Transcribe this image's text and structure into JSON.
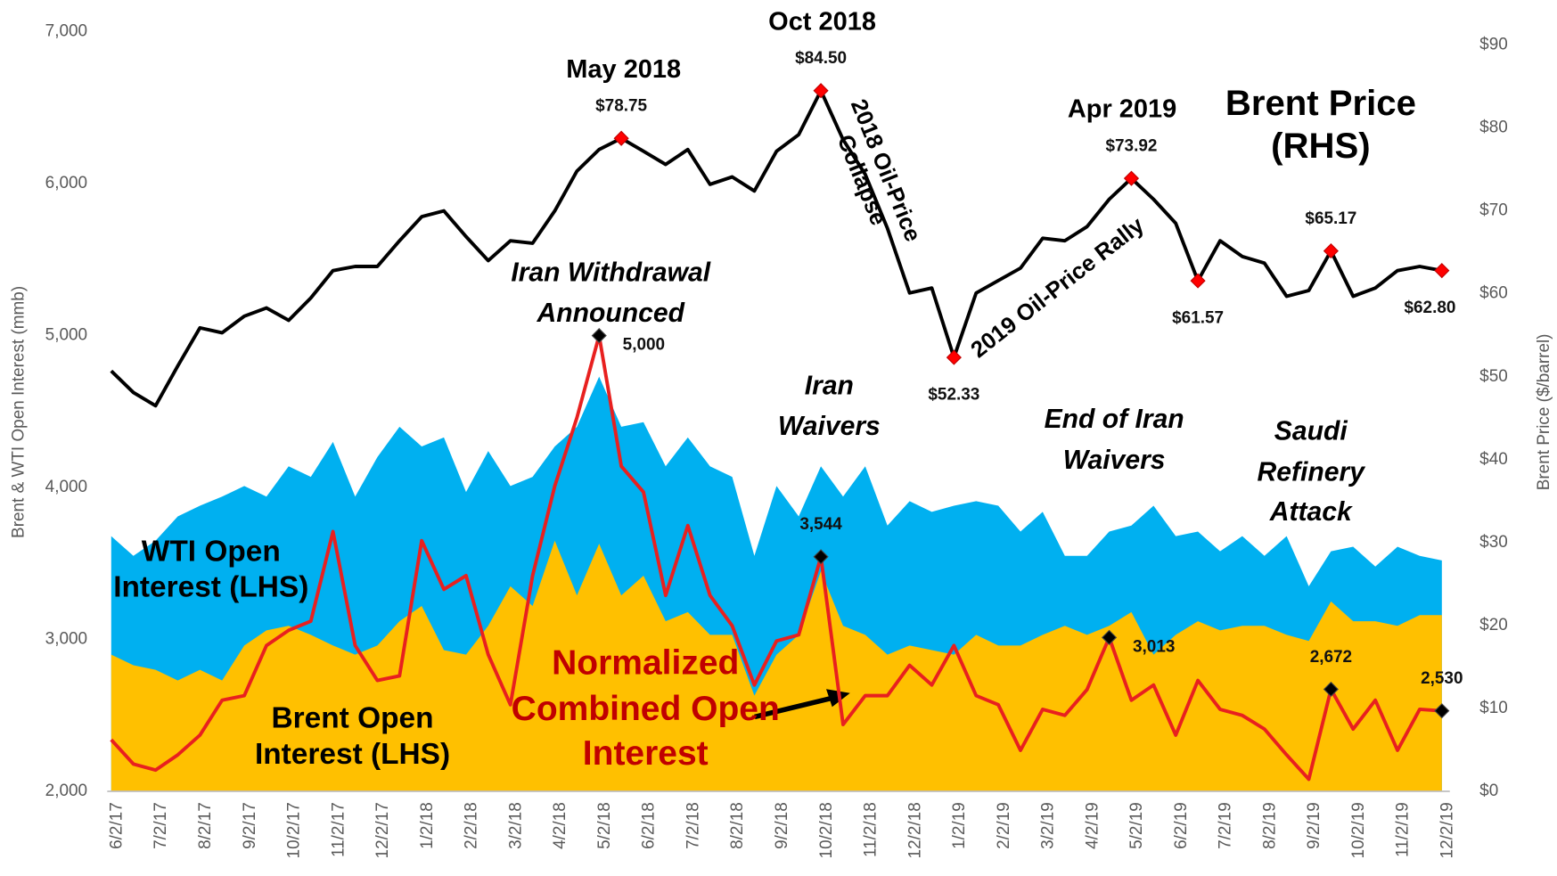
{
  "chart_data": {
    "type": "line",
    "y_axis_label": "Brent & WTI Open Interest (mmb)",
    "y2_axis_label": "Brent  Price ($/barrel)",
    "categories": [
      "6/2/17",
      null,
      "7/2/17",
      null,
      "8/2/17",
      null,
      "9/2/17",
      null,
      "10/2/17",
      null,
      "11/2/17",
      null,
      "12/2/17",
      null,
      "1/2/18",
      null,
      "2/2/18",
      null,
      "3/2/18",
      null,
      "4/2/18",
      null,
      "5/2/18",
      null,
      "6/2/18",
      null,
      "7/2/18",
      null,
      "8/2/18",
      null,
      "9/2/18",
      null,
      "10/2/18",
      null,
      "11/2/18",
      null,
      "12/2/18",
      null,
      "1/2/19",
      null,
      "2/2/19",
      null,
      "3/2/19",
      null,
      "4/2/19",
      null,
      "5/2/19",
      null,
      "6/2/19",
      null,
      "7/2/19",
      null,
      "8/2/19",
      null,
      "9/2/19",
      null,
      "10/2/19",
      null,
      "11/2/19",
      null,
      "12/2/19"
    ],
    "ylim": [
      2000,
      7000
    ],
    "yticks": [
      {
        "value": 2000,
        "label": "2,000"
      },
      {
        "value": 3000,
        "label": "3,000"
      },
      {
        "value": 4000,
        "label": "4,000"
      },
      {
        "value": 5000,
        "label": "5,000"
      },
      {
        "value": 6000,
        "label": "6,000"
      },
      {
        "value": 7000,
        "label": "7,000"
      }
    ],
    "y2lim": [
      0,
      91.6
    ],
    "y2ticks": [
      {
        "value": 0,
        "label": "$0"
      },
      {
        "value": 10,
        "label": "$10"
      },
      {
        "value": 20,
        "label": "$20"
      },
      {
        "value": 30,
        "label": "$30"
      },
      {
        "value": 40,
        "label": "$40"
      },
      {
        "value": 50,
        "label": "$50"
      },
      {
        "value": 60,
        "label": "$60"
      },
      {
        "value": 70,
        "label": "$70"
      },
      {
        "value": 80,
        "label": "$80"
      },
      {
        "value": 90,
        "label": "$90"
      }
    ],
    "series": [
      {
        "name": "WTI Open Interest (LHS)",
        "type": "area",
        "color": "#00b0f0",
        "values": [
          3680,
          3550,
          3650,
          3810,
          3880,
          3940,
          4010,
          3940,
          4140,
          4070,
          4300,
          3940,
          4200,
          4400,
          4270,
          4330,
          3970,
          4240,
          4010,
          4070,
          4270,
          4400,
          4730,
          4400,
          4430,
          4140,
          4330,
          4140,
          4070,
          3550,
          4010,
          3810,
          4140,
          3940,
          4140,
          3750,
          3910,
          3840,
          3880,
          3910,
          3880,
          3710,
          3840,
          3550,
          3550,
          3710,
          3750,
          3880,
          3680,
          3710,
          3580,
          3680,
          3550,
          3680,
          3350,
          3580,
          3610,
          3480,
          3610,
          3550,
          3520
        ]
      },
      {
        "name": "Brent Open Interest (LHS)",
        "type": "area",
        "color": "#ffc000",
        "values": [
          2900,
          2830,
          2800,
          2730,
          2800,
          2730,
          2960,
          3060,
          3090,
          3030,
          2960,
          2900,
          2960,
          3120,
          3220,
          2930,
          2900,
          3090,
          3350,
          3220,
          3650,
          3290,
          3630,
          3290,
          3420,
          3120,
          3180,
          3030,
          3030,
          2630,
          2900,
          3030,
          3450,
          3090,
          3030,
          2900,
          2960,
          2930,
          2900,
          3030,
          2960,
          2960,
          3030,
          3090,
          3030,
          3090,
          3180,
          2900,
          3030,
          3120,
          3060,
          3090,
          3090,
          3030,
          2990,
          3250,
          3120,
          3120,
          3090,
          3160,
          3160
        ]
      },
      {
        "name": "Normalized Combined Open Interest",
        "type": "line",
        "color": "#e8201f",
        "values": [
          2340,
          2180,
          2140,
          2240,
          2370,
          2600,
          2630,
          2960,
          3060,
          3120,
          3710,
          2960,
          2730,
          2760,
          3650,
          3330,
          3420,
          2900,
          2570,
          3420,
          4010,
          4460,
          5000,
          4140,
          3970,
          3290,
          3750,
          3290,
          3090,
          2700,
          2990,
          3030,
          3544,
          2440,
          2630,
          2630,
          2830,
          2700,
          2960,
          2630,
          2570,
          2270,
          2540,
          2500,
          2670,
          3013,
          2600,
          2700,
          2370,
          2730,
          2540,
          2500,
          2410,
          2240,
          2080,
          2672,
          2410,
          2600,
          2270,
          2540,
          2530
        ],
        "value_labels": [
          null,
          null,
          null,
          null,
          null,
          null,
          null,
          null,
          null,
          null,
          null,
          null,
          null,
          null,
          null,
          null,
          null,
          null,
          null,
          null,
          null,
          null,
          "5,000",
          null,
          null,
          null,
          null,
          null,
          null,
          null,
          null,
          null,
          "3,544",
          null,
          null,
          null,
          null,
          null,
          null,
          null,
          null,
          null,
          null,
          null,
          null,
          "3,013",
          null,
          null,
          null,
          null,
          null,
          null,
          null,
          null,
          null,
          "2,672",
          null,
          null,
          null,
          null,
          "2,530"
        ]
      },
      {
        "name": "Brent Price (RHS)",
        "type": "line",
        "axis": "y2",
        "color": "#000000",
        "values": [
          50.7,
          48.1,
          46.5,
          51.3,
          55.9,
          55.3,
          57.3,
          58.3,
          56.8,
          59.5,
          62.8,
          63.3,
          63.3,
          66.4,
          69.3,
          70.0,
          66.9,
          64.0,
          66.4,
          66.1,
          70.0,
          74.8,
          77.4,
          78.75,
          77.2,
          75.6,
          77.4,
          73.2,
          74.1,
          72.4,
          77.2,
          79.2,
          84.5,
          78.6,
          74.4,
          67.9,
          60.1,
          60.7,
          52.33,
          60.1,
          61.6,
          63.1,
          66.7,
          66.4,
          68.1,
          71.4,
          73.92,
          71.4,
          68.5,
          61.57,
          66.4,
          64.5,
          63.7,
          59.7,
          60.4,
          65.17,
          59.7,
          60.7,
          62.8,
          63.3,
          62.8
        ],
        "value_labels": [
          null,
          null,
          null,
          null,
          null,
          null,
          null,
          null,
          null,
          null,
          null,
          null,
          null,
          null,
          null,
          null,
          null,
          null,
          null,
          null,
          null,
          null,
          null,
          "$78.75",
          null,
          null,
          null,
          null,
          null,
          null,
          null,
          null,
          "$84.50",
          null,
          null,
          null,
          null,
          null,
          "$52.33",
          null,
          null,
          null,
          null,
          null,
          null,
          null,
          "$73.92",
          null,
          null,
          "$61.57",
          null,
          null,
          null,
          null,
          null,
          "$65.17",
          null,
          null,
          null,
          null,
          "$62.80"
        ]
      }
    ],
    "annotations": [
      "May 2018",
      "Oct 2018",
      "Apr 2019",
      "Iran Withdrawal Announced",
      "Iran Waivers",
      "End of Iran Waivers",
      "Saudi Refinery Attack",
      "2018 Oil-Price Collapse",
      "2019 Oil-Price Rally"
    ]
  }
}
